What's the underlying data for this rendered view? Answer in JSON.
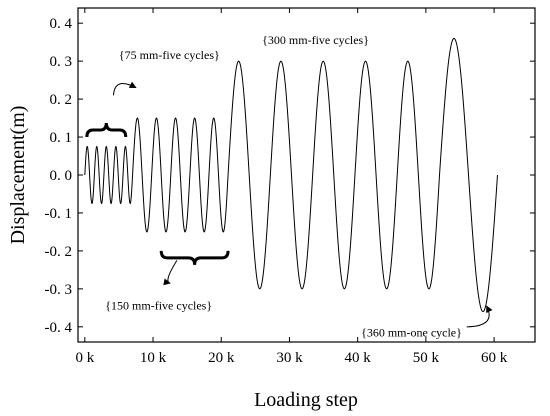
{
  "chart_data": {
    "type": "line",
    "xlabel": "Loading step",
    "ylabel": "Displacement(m)",
    "xlim": [
      -1000,
      66000
    ],
    "ylim": [
      -0.44,
      0.44
    ],
    "x_ticks": [
      0,
      10000,
      20000,
      30000,
      40000,
      50000,
      60000
    ],
    "x_tick_labels": [
      "0 k",
      "10 k",
      "20 k",
      "30 k",
      "40 k",
      "50 k",
      "60 k"
    ],
    "y_ticks": [
      -0.4,
      -0.3,
      -0.2,
      -0.1,
      0.0,
      0.1,
      0.2,
      0.3,
      0.4
    ],
    "y_tick_labels": [
      "-0. 4",
      "-0. 3",
      "-0. 2",
      "-0. 1",
      "0. 0",
      "0. 1",
      "0. 2",
      "0. 3",
      "0. 4"
    ],
    "series": [
      {
        "segments": [
          {
            "x_start": 0,
            "x_end": 7000,
            "cycles": 5,
            "amplitude": 0.075
          },
          {
            "x_start": 7000,
            "x_end": 21000,
            "cycles": 5,
            "amplitude": 0.15
          },
          {
            "x_start": 21000,
            "x_end": 52000,
            "cycles": 5,
            "amplitude": 0.3
          },
          {
            "x_start": 52000,
            "x_end": 60500,
            "cycles": 1,
            "amplitude": 0.36
          }
        ],
        "color": "#000000"
      }
    ],
    "annotations": [
      {
        "text": "{75 mm-five cycles}",
        "tx": 5000,
        "ty": 0.305,
        "arrow_to": [
          7500,
          0.23
        ]
      },
      {
        "text": "{150 mm-five cycles}",
        "tx": 3000,
        "ty": -0.355,
        "arrow_to": [
          12500,
          -0.285
        ]
      },
      {
        "text": "{300 mm-five cycles}",
        "tx": 26000,
        "ty": 0.345
      },
      {
        "text": "{360 mm-one cycle}",
        "tx": 40500,
        "ty": -0.425,
        "arrow_to": [
          58900,
          -0.345
        ]
      }
    ],
    "braces": [
      {
        "x1": 300,
        "x2": 6000,
        "y": 0.1,
        "direction": "up"
      },
      {
        "x1": 11200,
        "x2": 21000,
        "y": -0.2,
        "direction": "down"
      }
    ],
    "grid": false,
    "legend": "none"
  }
}
